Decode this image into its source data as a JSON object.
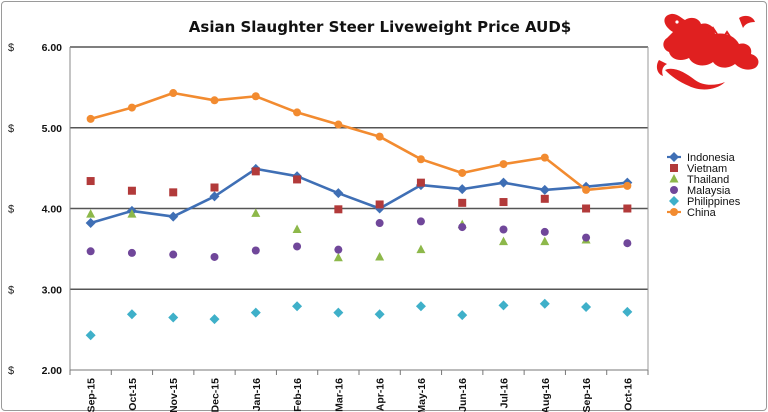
{
  "chart_data": {
    "type": "line",
    "title": "Asian Slaughter Steer Liveweight Price AUD$",
    "ylim": [
      2.0,
      6.0
    ],
    "y_ticks": [
      "2.00",
      "3.00",
      "4.00",
      "5.00",
      "6.00"
    ],
    "y_tick_values": [
      2,
      3,
      4,
      5,
      6
    ],
    "y_currency_symbol": "$",
    "grid": "horizontal",
    "legend_position": "right",
    "categories": [
      "Sep-15",
      "Oct-15",
      "Nov-15",
      "Dec-15",
      "Jan-16",
      "Feb-16",
      "Mar-16",
      "Apr-16",
      "May-16",
      "Jun-16",
      "Jul-16",
      "Aug-16",
      "Sep-16",
      "Oct-16"
    ],
    "series": [
      {
        "name": "Indonesia",
        "kind": "line",
        "marker": "diamond",
        "color": "#3f6fb5",
        "values": [
          3.82,
          3.97,
          3.9,
          4.15,
          4.49,
          4.4,
          4.19,
          4.0,
          4.29,
          4.24,
          4.32,
          4.23,
          4.27,
          4.32
        ]
      },
      {
        "name": "Vietnam",
        "kind": "points",
        "marker": "square",
        "color": "#b23a3a",
        "values": [
          4.34,
          4.22,
          4.2,
          4.26,
          4.46,
          4.36,
          3.99,
          4.05,
          4.32,
          4.07,
          4.08,
          4.12,
          4.0,
          4.0
        ]
      },
      {
        "name": "Thailand",
        "kind": "points",
        "marker": "triangle",
        "color": "#8db84a",
        "values": [
          3.93,
          3.93,
          null,
          null,
          3.94,
          3.74,
          3.39,
          3.4,
          3.49,
          3.8,
          3.59,
          3.59,
          3.61,
          null
        ]
      },
      {
        "name": "Malaysia",
        "kind": "points",
        "marker": "circle",
        "color": "#70479a",
        "values": [
          3.47,
          3.45,
          3.43,
          3.4,
          3.48,
          3.53,
          3.49,
          3.82,
          3.84,
          3.77,
          3.74,
          3.71,
          3.64,
          3.57
        ]
      },
      {
        "name": "Philippines",
        "kind": "points",
        "marker": "diamond",
        "color": "#3fb0c9",
        "values": [
          2.43,
          2.69,
          2.65,
          2.63,
          2.71,
          2.79,
          2.71,
          2.69,
          2.79,
          2.68,
          2.8,
          2.82,
          2.78,
          2.72
        ]
      },
      {
        "name": "China",
        "kind": "line",
        "marker": "circle",
        "color": "#f28b30",
        "values": [
          5.11,
          5.25,
          5.43,
          5.34,
          5.39,
          5.19,
          5.04,
          4.89,
          4.61,
          4.44,
          4.55,
          4.63,
          4.23,
          4.28
        ]
      }
    ]
  },
  "logo": {
    "icon": "red-dragon-icon",
    "color": "#e02020"
  }
}
